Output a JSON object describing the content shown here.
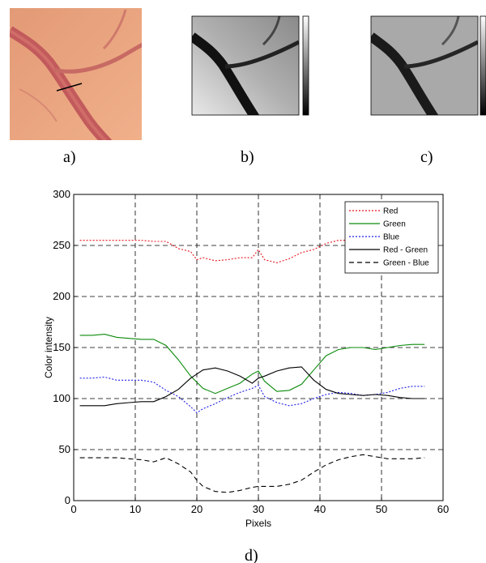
{
  "captions": [
    "a)",
    "b)",
    "c)",
    "d)"
  ],
  "panels": {
    "photo": {
      "bg": "#e8a07a",
      "vessel": "#c0575a"
    },
    "gray1": {
      "bg": "#b5b5b5",
      "vessel": "#151515"
    },
    "gray2": {
      "bg": "#a8a8a8",
      "vessel": "#202020"
    }
  },
  "chart_data": {
    "type": "line",
    "xlabel": "Pixels",
    "ylabel": "Color intensity",
    "xlim": [
      0,
      60
    ],
    "ylim": [
      0,
      300
    ],
    "xticks": [
      0,
      10,
      20,
      30,
      40,
      50,
      60
    ],
    "yticks": [
      0,
      50,
      100,
      150,
      200,
      250,
      300
    ],
    "grid": true,
    "legend": "top-right",
    "x": [
      1,
      3,
      5,
      7,
      9,
      11,
      13,
      15,
      17,
      19,
      20,
      21,
      23,
      25,
      27,
      29,
      30,
      31,
      33,
      35,
      37,
      39,
      41,
      43,
      45,
      47,
      49,
      51,
      53,
      55,
      57
    ],
    "series": [
      {
        "name": "Red",
        "color": "#e8141e",
        "dash": "2,2",
        "values": [
          255,
          255,
          255,
          255,
          255,
          255,
          254,
          254,
          247,
          244,
          236,
          238,
          235,
          236,
          238,
          238,
          246,
          236,
          233,
          237,
          243,
          246,
          252,
          255,
          255,
          255,
          255,
          255,
          255,
          255,
          255
        ]
      },
      {
        "name": "Green",
        "color": "#0a8a0a",
        "dash": "",
        "values": [
          162,
          162,
          163,
          160,
          159,
          158,
          158,
          152,
          138,
          122,
          116,
          110,
          105,
          110,
          115,
          124,
          127,
          117,
          107,
          108,
          114,
          128,
          142,
          148,
          150,
          150,
          148,
          150,
          152,
          153,
          153
        ]
      },
      {
        "name": "Blue",
        "color": "#1e1ee6",
        "dash": "2,2",
        "values": [
          120,
          120,
          121,
          118,
          118,
          118,
          116,
          108,
          102,
          92,
          86,
          90,
          95,
          101,
          106,
          110,
          113,
          102,
          96,
          93,
          95,
          100,
          104,
          106,
          105,
          103,
          104,
          106,
          110,
          112,
          112
        ]
      },
      {
        "name": "Red - Green",
        "color": "#000000",
        "dash": "",
        "values": [
          93,
          93,
          93,
          95,
          96,
          97,
          97,
          102,
          109,
          120,
          124,
          128,
          130,
          127,
          122,
          115,
          120,
          122,
          127,
          130,
          131,
          118,
          109,
          105,
          104,
          103,
          104,
          103,
          101,
          100,
          100
        ]
      },
      {
        "name": "Green - Blue",
        "color": "#000000",
        "dash": "6,4",
        "values": [
          42,
          42,
          42,
          42,
          41,
          40,
          38,
          42,
          36,
          28,
          20,
          14,
          9,
          8,
          10,
          13,
          14,
          14,
          14,
          16,
          20,
          28,
          35,
          40,
          43,
          45,
          43,
          41,
          41,
          41,
          42
        ]
      }
    ]
  }
}
